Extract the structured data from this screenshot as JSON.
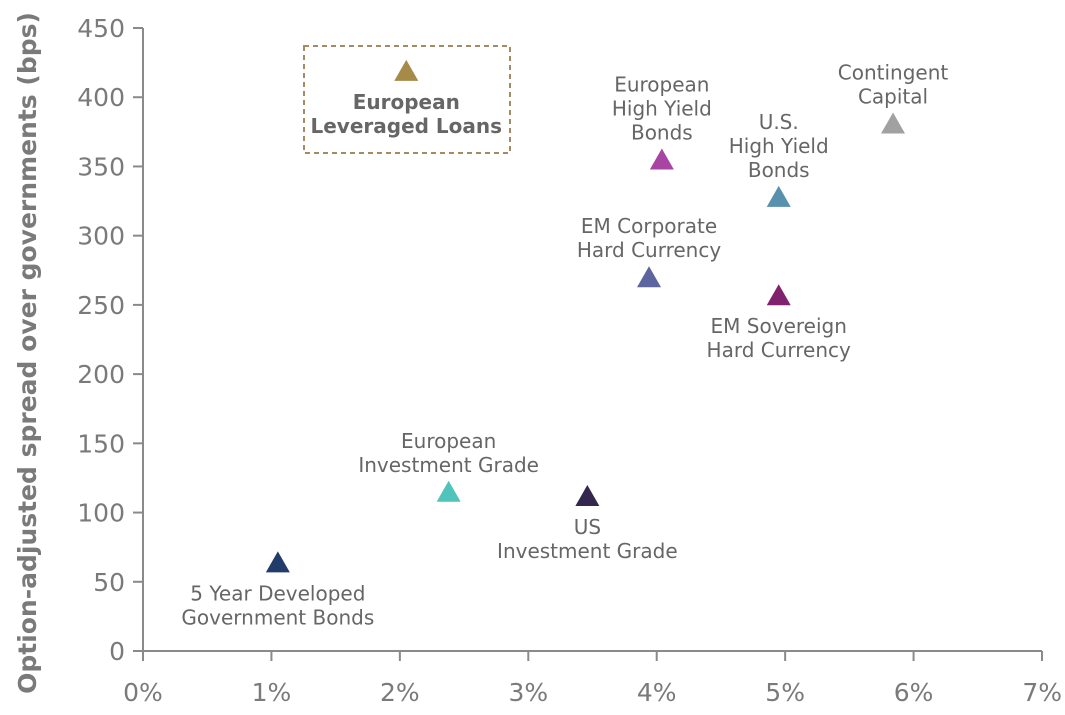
{
  "chart_data": {
    "type": "scatter",
    "ylabel": "Option-adjusted spread over governments (bps)",
    "xlabel": "",
    "xlim": [
      0,
      7
    ],
    "ylim": [
      0,
      450
    ],
    "x_ticks": [
      "0%",
      "1%",
      "2%",
      "3%",
      "4%",
      "5%",
      "6%",
      "7%"
    ],
    "y_ticks": [
      "0",
      "50",
      "100",
      "150",
      "200",
      "250",
      "300",
      "350",
      "400",
      "450"
    ],
    "grid": false,
    "marker": "triangle",
    "highlight_style": "dashed-box",
    "highlight_color": "#a68a64",
    "points": [
      {
        "name": "5 Year Developed Government Bonds",
        "label_lines": [
          "5 Year Developed",
          "Government Bonds"
        ],
        "x": 1.05,
        "y": 64,
        "color": "#213c6a",
        "label_pos": "below"
      },
      {
        "name": "European Investment Grade",
        "label_lines": [
          "European",
          "Investment Grade"
        ],
        "x": 2.38,
        "y": 115,
        "color": "#4ec4bb",
        "label_pos": "above"
      },
      {
        "name": "US Investment Grade",
        "label_lines": [
          "US",
          "Investment Grade"
        ],
        "x": 3.46,
        "y": 112,
        "color": "#33264f",
        "label_pos": "below"
      },
      {
        "name": "EM Corporate Hard Currency",
        "label_lines": [
          "EM Corporate",
          "Hard Currency"
        ],
        "x": 3.94,
        "y": 270,
        "color": "#5d659e",
        "label_pos": "above"
      },
      {
        "name": "European High Yield Bonds",
        "label_lines": [
          "European",
          "High Yield",
          "Bonds"
        ],
        "x": 4.04,
        "y": 355,
        "color": "#a845a4",
        "label_pos": "above"
      },
      {
        "name": "EM Sovereign Hard Currency",
        "label_lines": [
          "EM Sovereign",
          "Hard Currency"
        ],
        "x": 4.95,
        "y": 257,
        "color": "#81226f",
        "label_pos": "below"
      },
      {
        "name": "U.S. High Yield Bonds",
        "label_lines": [
          "U.S.",
          "High Yield",
          "Bonds"
        ],
        "x": 4.95,
        "y": 328,
        "color": "#5791ae",
        "label_pos": "above"
      },
      {
        "name": "Contingent Capital",
        "label_lines": [
          "Contingent",
          "Capital"
        ],
        "x": 5.84,
        "y": 381,
        "color": "#a1a1a1",
        "label_pos": "above"
      },
      {
        "name": "European Leveraged Loans",
        "label_lines": [
          "European",
          "Leveraged Loans"
        ],
        "x": 2.05,
        "y": 419,
        "color": "#a68a48",
        "label_pos": "below",
        "highlight": true
      }
    ]
  }
}
